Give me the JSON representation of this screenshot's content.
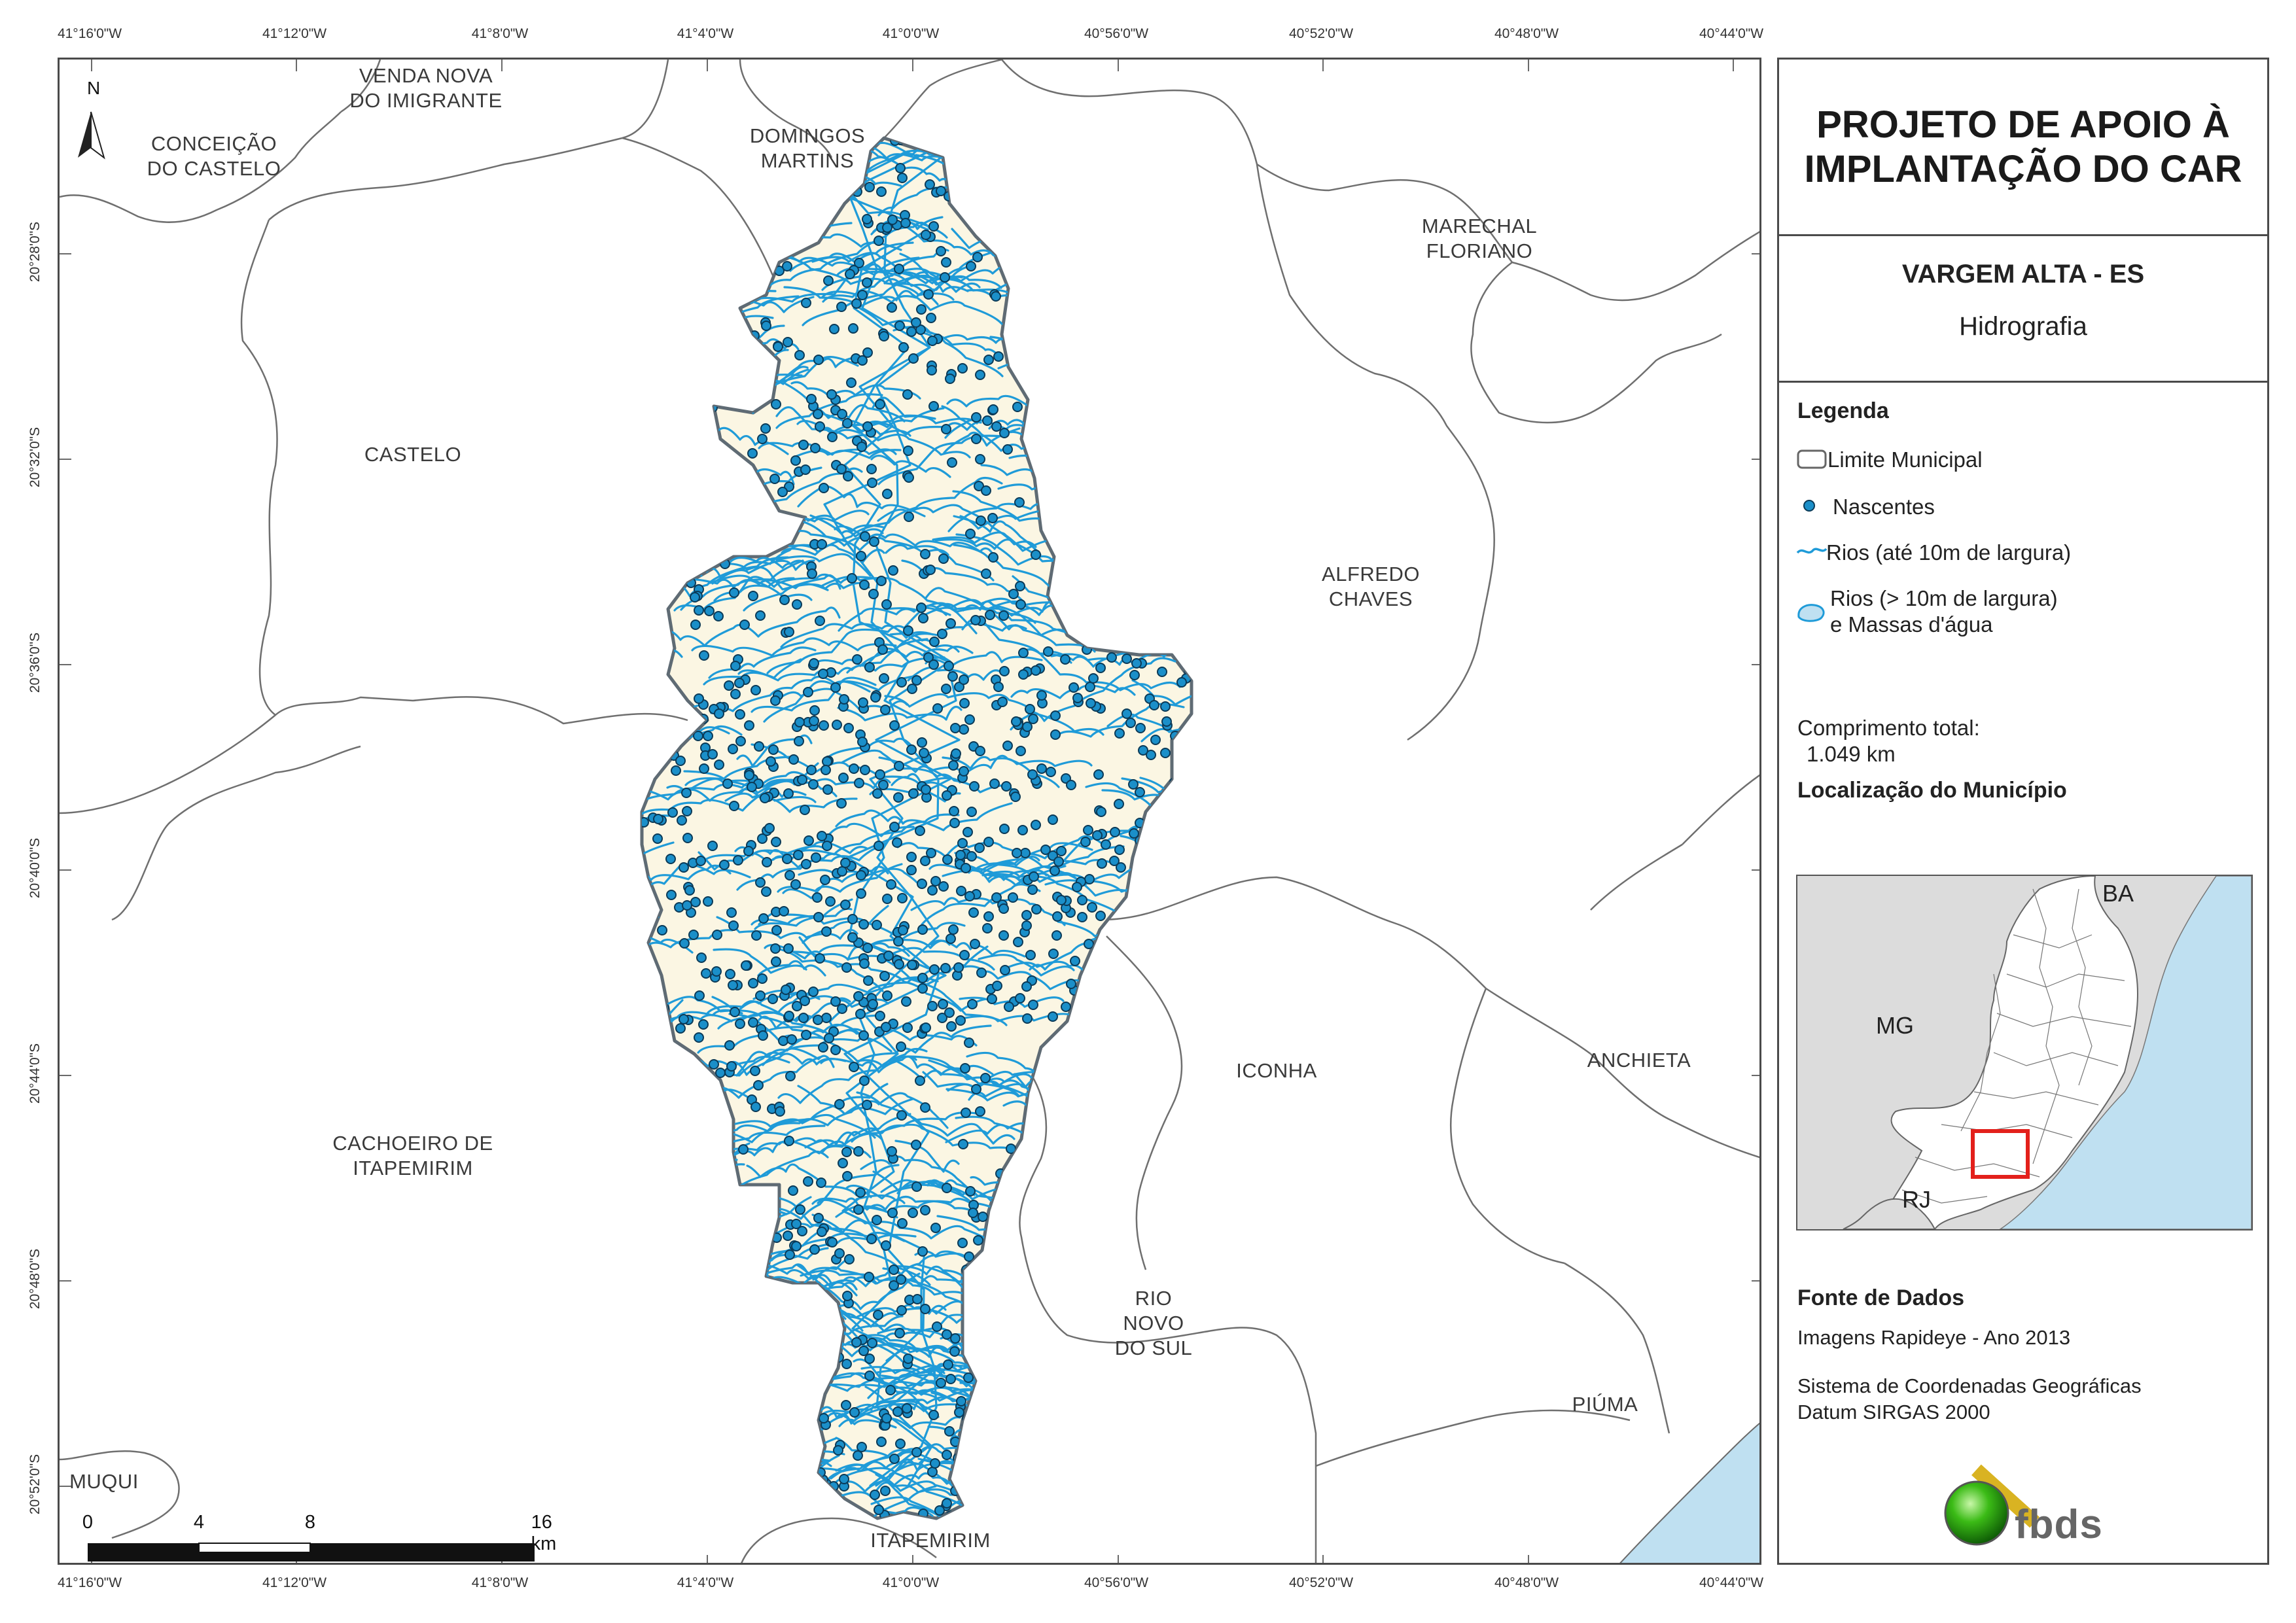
{
  "map": {
    "top_ticks": [
      "41°16'0\"W",
      "41°12'0\"W",
      "41°8'0\"W",
      "41°4'0\"W",
      "41°0'0\"W",
      "40°56'0\"W",
      "40°52'0\"W",
      "40°48'0\"W",
      "40°44'0\"W"
    ],
    "bottom_ticks": [
      "41°16'0\"W",
      "41°12'0\"W",
      "41°8'0\"W",
      "41°4'0\"W",
      "41°0'0\"W",
      "40°56'0\"W",
      "40°52'0\"W",
      "40°48'0\"W",
      "40°44'0\"W"
    ],
    "left_ticks": [
      "20°28'0\"S",
      "20°32'0\"S",
      "20°36'0\"S",
      "20°40'0\"S",
      "20°44'0\"S",
      "20°48'0\"S",
      "20°52'0\"S"
    ],
    "north_label": "N",
    "municipalities": {
      "venda_nova": "VENDA NOVA\nDO IMIGRANTE",
      "conceicao": "CONCEIÇÃO\nDO CASTELO",
      "domingos": "DOMINGOS\nMARTINS",
      "marechal": "MARECHAL\nFLORIANO",
      "castelo": "CASTELO",
      "alfredo": "ALFREDO\nCHAVES",
      "iconha": "ICONHA",
      "anchieta": "ANCHIETA",
      "cachoeiro": "CACHOEIRO DE\nITAPEMIRIM",
      "rio_novo": "RIO\nNOVO\nDO SUL",
      "piuma": "PIÚMA",
      "muqui": "MUQUI",
      "itapemirim": "ITAPEMIRIM"
    },
    "scale": {
      "labels": [
        "0",
        "4",
        "8",
        "16 km"
      ]
    }
  },
  "panel": {
    "title": "PROJETO DE APOIO À\nIMPLANTAÇÃO DO CAR",
    "municipality": "VARGEM ALTA - ES",
    "theme": "Hidrografia",
    "legend_title": "Legenda",
    "legend": {
      "limite": "Limite Municipal",
      "nascentes": "Nascentes",
      "rios_small": "Rios (até 10m de largura)",
      "rios_large": "Rios (> 10m de largura)\ne Massas d'água"
    },
    "comprimento_label": "Comprimento total:",
    "comprimento_value": "1.049 km",
    "location_title": "Localização do Município",
    "location_labels": {
      "ba": "BA",
      "mg": "MG",
      "rj": "RJ"
    },
    "sources_title": "Fonte de Dados",
    "source_1": "Imagens Rapideye - Ano 2013",
    "source_2": "Sistema de Coordenadas Geográficas\nDatum SIRGAS 2000",
    "logo_text": "fbds"
  },
  "colors": {
    "municipality_fill": "#fbf6e3",
    "river": "#1f9bd8",
    "spring": "#1b8fc9",
    "water_body": "#bfe0f1",
    "highlight": "#e3201b"
  }
}
